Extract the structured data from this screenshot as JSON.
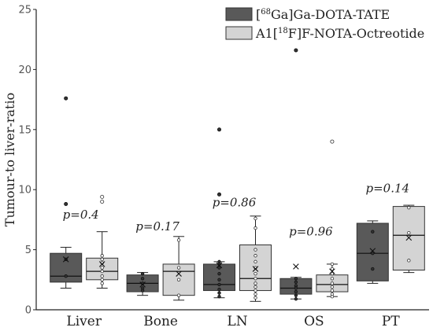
{
  "chart_data": {
    "type": "boxplot",
    "ylabel": "Tumour-to liver-ratio",
    "ylim": [
      0,
      25
    ],
    "yticks": [
      "0",
      "5",
      "10",
      "15",
      "20",
      "25"
    ],
    "categories": [
      "Liver",
      "Bone",
      "LN",
      "OS",
      "PT"
    ],
    "legend_position": "top-right",
    "series": [
      {
        "name_parts": {
          "pre": "[",
          "sup": "68",
          "post": "Ga]Ga-DOTA-TATE"
        },
        "color": "#595959",
        "boxes": [
          {
            "min": 1.8,
            "q1": 2.3,
            "median": 2.8,
            "q3": 4.7,
            "max": 5.2,
            "mean": 4.2,
            "points": [
              17.6,
              8.8,
              4.2,
              2.8
            ]
          },
          {
            "min": 1.2,
            "q1": 1.5,
            "median": 2.2,
            "q3": 2.9,
            "max": 3.1,
            "mean": 2.1,
            "points": [
              3.0,
              2.6,
              2.2,
              1.8,
              1.6
            ]
          },
          {
            "min": 1.0,
            "q1": 1.6,
            "median": 2.1,
            "q3": 3.8,
            "max": 4.0,
            "mean": 3.7,
            "points": [
              15.0,
              9.6,
              4.0,
              3.8,
              3.5,
              3.0,
              2.5,
              2.1,
              1.7,
              1.4,
              1.1
            ]
          },
          {
            "min": 0.9,
            "q1": 1.3,
            "median": 1.8,
            "q3": 2.6,
            "max": 2.7,
            "mean": 3.6,
            "points": [
              21.6,
              2.6,
              2.3,
              2.0,
              1.8,
              1.5,
              1.2,
              0.9
            ]
          },
          {
            "min": 2.2,
            "q1": 2.4,
            "median": 4.7,
            "q3": 7.2,
            "max": 7.4,
            "mean": 4.9,
            "points": [
              6.5,
              4.7,
              3.4
            ]
          }
        ]
      },
      {
        "name_parts": {
          "pre": "A1[",
          "sup": "18",
          "post": "F]F-NOTA-Octreotide"
        },
        "color": "#d4d4d4",
        "boxes": [
          {
            "min": 1.8,
            "q1": 2.5,
            "median": 3.2,
            "q3": 4.3,
            "max": 6.5,
            "mean": 3.8,
            "points": [
              9.4,
              9.0,
              4.5,
              4.2,
              3.9,
              3.5,
              3.2,
              2.8,
              2.5,
              2.2
            ]
          },
          {
            "min": 0.8,
            "q1": 1.2,
            "median": 3.2,
            "q3": 3.8,
            "max": 6.1,
            "mean": 3.0,
            "points": [
              5.8,
              3.5,
              2.5,
              1.2
            ]
          },
          {
            "min": 0.7,
            "q1": 1.6,
            "median": 2.6,
            "q3": 5.4,
            "max": 7.8,
            "mean": 3.4,
            "points": [
              7.6,
              6.8,
              5.0,
              4.5,
              4.0,
              3.5,
              3.0,
              2.6,
              2.2,
              1.9,
              1.6,
              1.3,
              1.0
            ]
          },
          {
            "min": 1.1,
            "q1": 1.5,
            "median": 2.1,
            "q3": 2.9,
            "max": 3.8,
            "mean": 3.2,
            "points": [
              14.0,
              3.8,
              3.4,
              3.0,
              2.6,
              2.2,
              1.9,
              1.6,
              1.3,
              1.1
            ]
          },
          {
            "min": 3.1,
            "q1": 3.3,
            "median": 6.2,
            "q3": 8.6,
            "max": 8.7,
            "mean": 6.0,
            "points": [
              8.5,
              6.4,
              4.1
            ]
          }
        ]
      }
    ],
    "annotations": [
      {
        "text": "p=0.4",
        "category": 0,
        "y": 7.6
      },
      {
        "text": "p=0.17",
        "category": 1,
        "y": 6.6
      },
      {
        "text": "p=0.86",
        "category": 2,
        "y": 8.6
      },
      {
        "text": "p=0.96",
        "category": 3,
        "y": 6.2
      },
      {
        "text": "p=0.14",
        "category": 4,
        "y": 9.8
      }
    ]
  }
}
